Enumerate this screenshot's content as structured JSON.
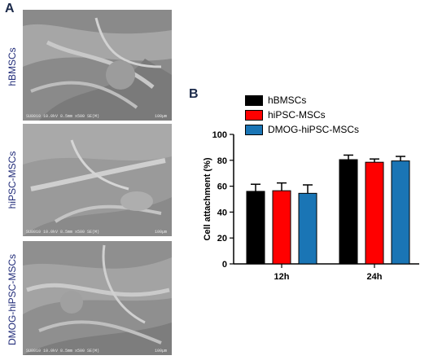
{
  "panel_a": {
    "letter": "A",
    "images": [
      {
        "label": "hBMSCs",
        "caption": "SU8010 10.0kV 8.5mm x500 SE(M)",
        "scale": "100µm"
      },
      {
        "label": "hiPSC-MSCs",
        "caption": "SU8010 10.0kV 8.5mm x500 SE(M)",
        "scale": "100µm"
      },
      {
        "label": "DMOG-hiPSC-MSCs",
        "caption": "SU8010 10.0kV 8.5mm x500 SE(M)",
        "scale": "100µm"
      }
    ]
  },
  "panel_b": {
    "letter": "B"
  },
  "chart_data": {
    "type": "bar",
    "categories": [
      "12h",
      "24h"
    ],
    "series": [
      {
        "name": "hBMSCs",
        "values": [
          56,
          80.5
        ],
        "errors": [
          5.5,
          3.5
        ],
        "color": "#000000"
      },
      {
        "name": "hiPSC-MSCs",
        "values": [
          56.5,
          78.5
        ],
        "errors": [
          6,
          2.5
        ],
        "color": "#ff0000"
      },
      {
        "name": "DMOG-hiPSC-MSCs",
        "values": [
          54.5,
          79.5
        ],
        "errors": [
          6.5,
          3.5
        ],
        "color": "#1a75b5"
      }
    ],
    "ylabel": "Cell attachment (%)",
    "xlabel": "",
    "ylim": [
      0,
      100
    ],
    "yticks": [
      0,
      20,
      40,
      60,
      80,
      100
    ],
    "legend_position": "top-left",
    "grid": false
  }
}
